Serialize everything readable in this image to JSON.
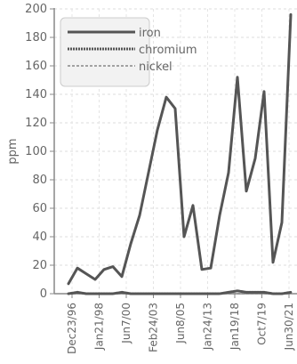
{
  "chart_data": {
    "type": "line",
    "title": "",
    "xlabel": "",
    "ylabel": "ppm",
    "ylim": [
      0,
      200
    ],
    "yticks": [
      0,
      20,
      40,
      60,
      80,
      100,
      120,
      140,
      160,
      180,
      200
    ],
    "xtick_labels": [
      "Dec23/96",
      "Jan21/98",
      "Jun7/00",
      "Feb24/03",
      "Jun8/05",
      "Jan24/13",
      "Jan19/18",
      "Oct7/19",
      "Jun30/21"
    ],
    "grid": true,
    "legend_position": "top-left",
    "series": [
      {
        "name": "iron",
        "color": "#555555",
        "style": "solid",
        "values": [
          7,
          18,
          14,
          10,
          17,
          19,
          12,
          35,
          55,
          85,
          115,
          138,
          130,
          40,
          62,
          17,
          18,
          55,
          85,
          152,
          72,
          95,
          142,
          22,
          50,
          196
        ]
      },
      {
        "name": "chromium",
        "color": "#555555",
        "style": "dotted",
        "values": [
          0,
          1,
          0,
          0,
          0,
          0,
          1,
          0,
          0,
          0,
          0,
          0,
          0,
          0,
          0,
          0,
          0,
          0,
          1,
          2,
          1,
          1,
          1,
          0,
          0,
          1
        ]
      },
      {
        "name": "nickel",
        "color": "#888888",
        "style": "dashed",
        "values": [
          0,
          0,
          0,
          0,
          0,
          0,
          0,
          0,
          0,
          0,
          0,
          0,
          0,
          0,
          0,
          0,
          0,
          0,
          0,
          0,
          0,
          0,
          0,
          0,
          0,
          0
        ]
      }
    ]
  }
}
